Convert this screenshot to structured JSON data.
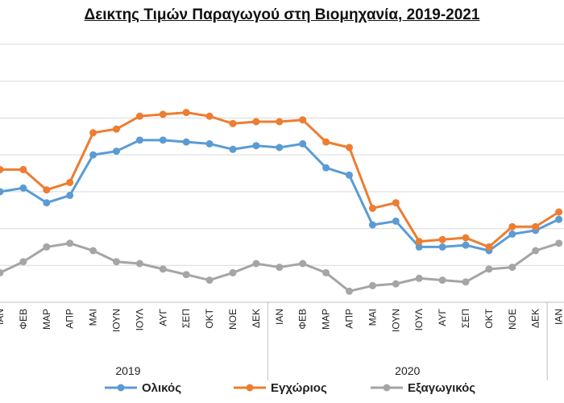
{
  "chart_data": {
    "type": "line",
    "title": "Δεικτης Τιμών Παραγωγού στη Βιομηχανία, 2019-2021",
    "xlabel": "",
    "ylabel": "",
    "grid": "horizontal",
    "legend_position": "bottom",
    "categories": [
      "ΙΑΝ",
      "ΦΕΒ",
      "ΜΑΡ",
      "ΑΠΡ",
      "ΜΑΙ",
      "ΙΟΥΝ",
      "ΙΟΥΛ",
      "ΑΥΓ",
      "ΣΕΠ",
      "ΟΚΤ",
      "ΝΟΕ",
      "ΔΕΚ",
      "ΙΑΝ",
      "ΦΕΒ",
      "ΜΑΡ",
      "ΑΠΡ",
      "ΜΑΙ",
      "ΙΟΥΝ",
      "ΙΟΥΛ",
      "ΑΥΓ",
      "ΣΕΠ",
      "ΟΚΤ",
      "ΝΟΕ",
      "ΔΕΚ",
      "ΙΑΝ"
    ],
    "year_labels": [
      {
        "label": "2019",
        "start": 0,
        "end": 11
      },
      {
        "label": "2020",
        "start": 12,
        "end": 23
      }
    ],
    "ylim": [
      0,
      7
    ],
    "series": [
      {
        "name": "Ολικός",
        "color": "#5b9bd5",
        "values": [
          3.0,
          3.1,
          2.7,
          2.9,
          4.0,
          4.1,
          4.4,
          4.4,
          4.35,
          4.3,
          4.15,
          4.25,
          4.2,
          4.3,
          3.65,
          3.45,
          2.1,
          2.2,
          1.5,
          1.5,
          1.55,
          1.4,
          1.85,
          1.95,
          2.25
        ]
      },
      {
        "name": "Εγχώριος",
        "color": "#ed7d31",
        "values": [
          3.6,
          3.6,
          3.05,
          3.25,
          4.6,
          4.7,
          5.05,
          5.1,
          5.15,
          5.05,
          4.85,
          4.9,
          4.9,
          4.95,
          4.35,
          4.2,
          2.55,
          2.7,
          1.65,
          1.7,
          1.75,
          1.5,
          2.05,
          2.05,
          2.45
        ]
      },
      {
        "name": "Εξαγωγικός",
        "color": "#a5a5a5",
        "values": [
          0.8,
          1.1,
          1.5,
          1.6,
          1.4,
          1.1,
          1.05,
          0.9,
          0.75,
          0.6,
          0.8,
          1.05,
          0.95,
          1.05,
          0.8,
          0.3,
          0.45,
          0.5,
          0.65,
          0.6,
          0.55,
          0.9,
          0.95,
          1.4,
          1.6
        ]
      }
    ]
  }
}
